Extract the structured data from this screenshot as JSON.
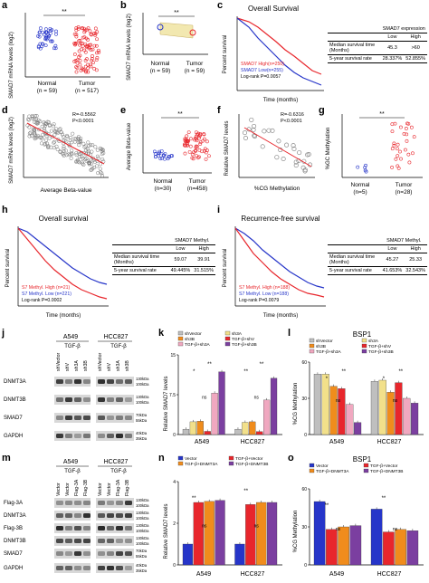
{
  "panels": {
    "a": "a",
    "b": "b",
    "c": "c",
    "d": "d",
    "e": "e",
    "f": "f",
    "g": "g",
    "h": "h",
    "i": "i",
    "j": "j",
    "k": "k",
    "l": "l",
    "m": "m",
    "n": "n",
    "o": "o"
  },
  "a": {
    "ylabel": "SMAD7 mRNA levels (log2)",
    "sig": "**",
    "groups": [
      "Normal",
      "Tumor"
    ],
    "ns": [
      "(n = 59)",
      "(n = 517)"
    ]
  },
  "b": {
    "ylabel": "SMAD7 mRNA levels (log2)",
    "sig": "**",
    "groups": [
      "Normal",
      "Tumor"
    ],
    "ns": [
      "(n = 59)",
      "(n = 59)"
    ]
  },
  "c": {
    "title": "Overall Survival",
    "ylabel": "Percent survival",
    "xlabel": "Time (months)",
    "legend": [
      "SMAD7 High(n=250)",
      "SMAD7 Low(n=255)",
      "Log-rank P=0.0057"
    ],
    "table": {
      "header": "SMAD7 expression",
      "cols": [
        "Low",
        "High"
      ],
      "rows": [
        {
          "label": "Median survival time (Months)",
          "vals": [
            "45.3",
            ">60"
          ]
        },
        {
          "label": "5-year survival rate",
          "vals": [
            "28.337%",
            "52.855%"
          ]
        }
      ]
    }
  },
  "d": {
    "ylabel": "SMAD7 mRNA levels (log2)",
    "xlabel": "Average Beta-value",
    "stats": [
      "R=-0.5562",
      "P<0.0001"
    ]
  },
  "e": {
    "ylabel": "Average Beta-value",
    "sig": "**",
    "groups": [
      "Normal",
      "Tumor"
    ],
    "ns": [
      "(n=30)",
      "(n=458)"
    ]
  },
  "f": {
    "ylabel": "Relative SMAD7 levels",
    "xlabel": "%CG Methylation",
    "stats": [
      "R=-0.6316",
      "P<0.0001"
    ]
  },
  "g": {
    "ylabel": "%GC Methylation",
    "sig": "**",
    "groups": [
      "Normal",
      "Tumor"
    ],
    "ns": [
      "(n=5)",
      "(n=28)"
    ]
  },
  "h": {
    "title": "Overall survival",
    "ylabel": "Percent survival",
    "xlabel": "Time (months)",
    "legend": [
      "S7 Methyl. High (n=21)",
      "S7 Methyl. Low (n=221)",
      "Log-rank P=0.0002"
    ],
    "table": {
      "header": "SMAD7 Methyl.",
      "cols": [
        "Low",
        "High"
      ],
      "rows": [
        {
          "label": "Median survival time (Months)",
          "vals": [
            "59.07",
            "39.91"
          ]
        },
        {
          "label": "5-year survival rate",
          "vals": [
            "49.445%",
            "31.515%"
          ]
        }
      ]
    }
  },
  "i": {
    "title": "Recurrence-free survival",
    "ylabel": "Percent survival",
    "xlabel": "Time (months)",
    "legend": [
      "S7 Methyl. High (n=188)",
      "S7 Methyl. Low (n=188)",
      "Log-rank P=0.0079"
    ],
    "table": {
      "header": "SMAD7 Methyl.",
      "cols": [
        "Low",
        "High"
      ],
      "rows": [
        {
          "label": "Median survival time (Months)",
          "vals": [
            "45.27",
            "25.33"
          ]
        },
        {
          "label": "5-year survival rate",
          "vals": [
            "41.653%",
            "32.543%"
          ]
        }
      ]
    }
  },
  "j": {
    "cells": [
      "A549",
      "HCC827"
    ],
    "treat": "TGF-β",
    "lanes": [
      "shVector",
      "shV",
      "sh3A",
      "sh3B"
    ],
    "rows": [
      "DNMT3A",
      "DNMT3B",
      "SMAD7",
      "GAPDH"
    ],
    "kda": [
      "130kDa",
      "100kDa",
      "130kDa",
      "100kDa",
      "70kDa",
      "55kDa",
      "40kDa",
      "35kDa"
    ]
  },
  "k": {
    "ylabel": "Relative SMAD7 levels",
    "groups": [
      "A549",
      "HCC827"
    ],
    "legend": [
      "shVector",
      "sh3A",
      "sh3B",
      "TGF-β+shV",
      "TGF-β+sh3A",
      "TGF-β+sh3B"
    ],
    "sig": [
      "*",
      "**",
      "**",
      "**"
    ],
    "ns": "ns"
  },
  "l": {
    "title": "BSP1",
    "ylabel": "%CG Methylation",
    "groups": [
      "A549",
      "HCC827"
    ],
    "legend": [
      "shVector",
      "sh3A",
      "sh3B",
      "TGF-β+shV",
      "TGF-β+sh3A",
      "TGF-β+sh3B"
    ],
    "sig": [
      "*",
      "**",
      "*",
      "**"
    ],
    "ns": "ns"
  },
  "m": {
    "cells": [
      "A549",
      "HCC827"
    ],
    "treat": "TGF-β",
    "lanes": [
      "Vector",
      "Vector",
      "Flag-3A",
      "Flag-3B"
    ],
    "rows": [
      "Flag-3A",
      "DNMT3A",
      "Flag-3B",
      "DNMT3B",
      "SMAD7",
      "GAPDH"
    ],
    "kda": [
      "130kDa",
      "100kDa",
      "130kDa",
      "100kDa",
      "130kDa",
      "100kDa",
      "130kDa",
      "100kDa",
      "70kDa",
      "55kDa",
      "40kDa",
      "35kDa"
    ]
  },
  "n": {
    "ylabel": "Relative SMAD7 levels",
    "groups": [
      "A549",
      "HCC827"
    ],
    "legend": [
      "Vector",
      "TGF-β+Vector",
      "TGF-β+DNMT3A",
      "TGF-β+DNMT3B"
    ],
    "sig": [
      "**",
      "**"
    ],
    "ns": "ns"
  },
  "o": {
    "title": "BSP1",
    "ylabel": "%CG Methylation",
    "groups": [
      "A549",
      "HCC827"
    ],
    "legend": [
      "Vector",
      "TGF-β+Vector",
      "TGF-β+DNMT3A",
      "TGF-β+DNMT3B"
    ],
    "sig": [
      "**",
      "**"
    ],
    "ns": "ns"
  },
  "chart_data": [
    {
      "panel": "k",
      "type": "bar",
      "categories": [
        "A549",
        "HCC827"
      ],
      "series": [
        {
          "name": "shVector",
          "values": [
            1.0,
            1.0
          ]
        },
        {
          "name": "sh3A",
          "values": [
            2.4,
            2.3
          ]
        },
        {
          "name": "sh3B",
          "values": [
            2.5,
            2.4
          ]
        },
        {
          "name": "TGF-β+shV",
          "values": [
            0.6,
            0.55
          ]
        },
        {
          "name": "TGF-β+sh3A",
          "values": [
            7.8,
            6.5
          ]
        },
        {
          "name": "TGF-β+sh3B",
          "values": [
            11.8,
            10.6
          ]
        }
      ],
      "ylim": [
        0,
        15
      ]
    },
    {
      "panel": "l",
      "type": "bar",
      "categories": [
        "A549",
        "HCC827"
      ],
      "series": [
        {
          "name": "shVector",
          "values": [
            50,
            44
          ]
        },
        {
          "name": "sh3A",
          "values": [
            50,
            45
          ]
        },
        {
          "name": "sh3B",
          "values": [
            40,
            35
          ]
        },
        {
          "name": "TGF-β+shV",
          "values": [
            38,
            43
          ]
        },
        {
          "name": "TGF-β+sh3A",
          "values": [
            25,
            30
          ]
        },
        {
          "name": "TGF-β+sh3B",
          "values": [
            10,
            26
          ]
        }
      ],
      "ylim": [
        0,
        60
      ]
    },
    {
      "panel": "n",
      "type": "bar",
      "categories": [
        "A549",
        "HCC827"
      ],
      "series": [
        {
          "name": "Vector",
          "values": [
            1.0,
            1.0
          ]
        },
        {
          "name": "TGF-β+Vector",
          "values": [
            3.0,
            2.9
          ]
        },
        {
          "name": "TGF-β+DNMT3A",
          "values": [
            3.05,
            3.0
          ]
        },
        {
          "name": "TGF-β+DNMT3B",
          "values": [
            3.1,
            3.0
          ]
        }
      ],
      "ylim": [
        0,
        4
      ]
    },
    {
      "panel": "o",
      "type": "bar",
      "categories": [
        "A549",
        "HCC827"
      ],
      "series": [
        {
          "name": "Vector",
          "values": [
            50,
            44
          ]
        },
        {
          "name": "TGF-β+Vector",
          "values": [
            28,
            26
          ]
        },
        {
          "name": "TGF-β+DNMT3A",
          "values": [
            30,
            28
          ]
        },
        {
          "name": "TGF-β+DNMT3B",
          "values": [
            31,
            27
          ]
        }
      ],
      "ylim": [
        0,
        60
      ]
    }
  ],
  "colors": {
    "red": "#e8262c",
    "blue": "#2635c9",
    "orange": "#f08c1c",
    "purple": "#7b3fa0",
    "gray": "#8a8a8a",
    "yellow": "#f2e08a",
    "pink": "#f0a8c0",
    "light": "#f7d0a0"
  }
}
